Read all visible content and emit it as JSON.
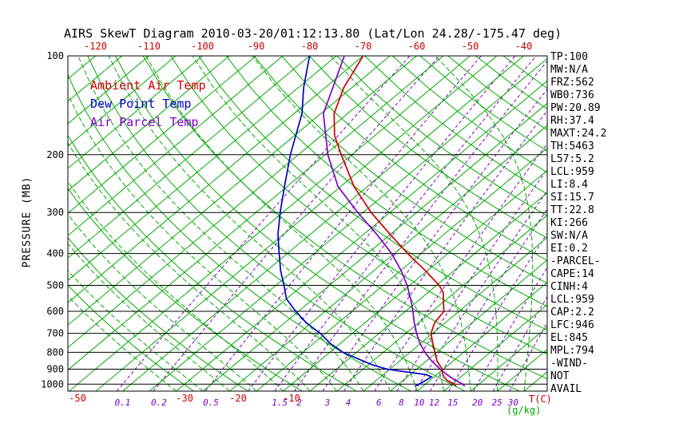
{
  "title": "AIRS SkewT Diagram 2010-03-20/01:12:13.80 (Lat/Lon 24.28/-175.47 deg)",
  "colors": {
    "temp_red": "#cc0000",
    "dew_blue": "#0000c8",
    "parcel_violet": "#8000c8",
    "grid_green": "#00aa00",
    "mixing_violet": "#8000c8",
    "axis_black": "#000000"
  },
  "axes": {
    "pressure_label": "PRESSURE (MB)",
    "pressure_ticks": [
      100,
      200,
      300,
      400,
      500,
      600,
      700,
      800,
      900,
      1000
    ],
    "top_temp_ticks": [
      -120,
      -110,
      -100,
      -90,
      -80,
      -70,
      -60,
      -50,
      -40
    ],
    "bottom_temp_ticks": [
      -50,
      -30,
      -20,
      -10
    ],
    "temp_unit_label": "T(C)",
    "mixing_unit_label": "(g/kg)",
    "mixing_ratio_labels": [
      "0.1",
      "0.2",
      "0.5",
      "1.5",
      "2",
      "3",
      "4",
      "6",
      "8",
      "10",
      "12",
      "15",
      "20",
      "25",
      "30"
    ]
  },
  "legend": [
    {
      "label": "Ambient Air Temp",
      "color": "#cc0000"
    },
    {
      "label": "Dew Point Temp",
      "color": "#0000c8"
    },
    {
      "label": "Air Parcel Temp",
      "color": "#8000c8"
    }
  ],
  "stats_panel": [
    "TP:100",
    "MW:N/A",
    "FRZ:562",
    "WB0:736",
    "PW:20.89",
    "RH:37.4",
    "MAXT:24.2",
    "TH:5463",
    "L57:5.2",
    "LCL:959",
    "LI:8.4",
    "SI:15.7",
    "TT:22.8",
    "KI:266",
    "SW:N/A",
    "EI:0.2",
    "-PARCEL-",
    "CAPE:14",
    "CINH:4",
    "LCL:959",
    "CAP:2.2",
    "LFC:946",
    "EL:845",
    "MPL:794",
    "-WIND-",
    "NOT",
    "AVAIL"
  ],
  "chart_data": {
    "type": "line",
    "title": "AIRS SkewT Diagram 2010-03-20/01:12:13.80 (Lat/Lon 24.28/-175.47 deg)",
    "xlabel": "T(C)",
    "ylabel": "PRESSURE (MB)",
    "y_axis": {
      "scale": "log",
      "range_mb": [
        100,
        1050
      ],
      "ticks": [
        100,
        200,
        300,
        400,
        500,
        600,
        700,
        800,
        900,
        1000
      ]
    },
    "x_axis": {
      "skewed": true,
      "top_ticks_C": [
        -120,
        -110,
        -100,
        -90,
        -80,
        -70,
        -60,
        -50,
        -40
      ],
      "bottom_ticks_C": [
        -50,
        -30,
        -20,
        -10
      ]
    },
    "series": [
      {
        "name": "Ambient Air Temp",
        "color": "#cc0000",
        "points_p_T": [
          [
            1015,
            21.2
          ],
          [
            1000,
            20.5
          ],
          [
            975,
            18.3
          ],
          [
            950,
            16.8
          ],
          [
            925,
            15.7
          ],
          [
            900,
            14.8
          ],
          [
            850,
            12.0
          ],
          [
            800,
            9.7
          ],
          [
            750,
            7.2
          ],
          [
            700,
            4.7
          ],
          [
            650,
            3.0
          ],
          [
            600,
            2.2
          ],
          [
            562,
            0.0
          ],
          [
            525,
            -2.2
          ],
          [
            500,
            -4.5
          ],
          [
            450,
            -10.5
          ],
          [
            400,
            -17.5
          ],
          [
            350,
            -25.0
          ],
          [
            300,
            -33.5
          ],
          [
            250,
            -42.5
          ],
          [
            200,
            -52.0
          ],
          [
            175,
            -57.5
          ],
          [
            150,
            -62.5
          ],
          [
            125,
            -66.5
          ],
          [
            100,
            -70.0
          ]
        ]
      },
      {
        "name": "Dew Point Temp",
        "color": "#0000c8",
        "points_p_T": [
          [
            1015,
            13.5
          ],
          [
            1000,
            13.8
          ],
          [
            975,
            14.2
          ],
          [
            950,
            14.5
          ],
          [
            935,
            13.0
          ],
          [
            925,
            10.5
          ],
          [
            900,
            4.5
          ],
          [
            875,
            1.0
          ],
          [
            850,
            -1.8
          ],
          [
            800,
            -7.5
          ],
          [
            750,
            -12.0
          ],
          [
            700,
            -16.0
          ],
          [
            650,
            -21.0
          ],
          [
            600,
            -25.5
          ],
          [
            550,
            -30.0
          ],
          [
            500,
            -33.5
          ],
          [
            450,
            -37.5
          ],
          [
            400,
            -41.5
          ],
          [
            350,
            -46.0
          ],
          [
            300,
            -50.5
          ],
          [
            250,
            -55.5
          ],
          [
            200,
            -61.5
          ],
          [
            150,
            -68.5
          ],
          [
            125,
            -74.0
          ],
          [
            100,
            -80.0
          ]
        ]
      },
      {
        "name": "Air Parcel Temp",
        "color": "#8000c8",
        "points_p_T": [
          [
            1015,
            22.8
          ],
          [
            1000,
            22.0
          ],
          [
            959,
            18.6
          ],
          [
            925,
            16.2
          ],
          [
            900,
            14.4
          ],
          [
            850,
            11.0
          ],
          [
            800,
            7.8
          ],
          [
            750,
            4.8
          ],
          [
            700,
            2.0
          ],
          [
            650,
            -0.8
          ],
          [
            600,
            -3.6
          ],
          [
            550,
            -6.8
          ],
          [
            500,
            -10.5
          ],
          [
            450,
            -15.0
          ],
          [
            400,
            -20.5
          ],
          [
            350,
            -27.5
          ],
          [
            300,
            -36.0
          ],
          [
            250,
            -45.5
          ],
          [
            200,
            -54.5
          ],
          [
            150,
            -64.5
          ],
          [
            100,
            -73.5
          ]
        ]
      }
    ],
    "background": {
      "isotherms_C": {
        "min": -120,
        "max": 45,
        "step": 5
      },
      "dry_adiabats_K": {
        "min": 243,
        "max": 443,
        "step": 10
      },
      "moist_adiabats_start_C": {
        "min": -30,
        "max": 45,
        "step": 5
      },
      "mixing_ratio_lines_gkg": [
        0.1,
        0.2,
        0.5,
        1,
        1.5,
        2,
        3,
        4,
        6,
        8,
        10,
        12,
        15,
        20,
        25,
        30
      ],
      "grid": "pressure lines every 100 mb, black"
    }
  }
}
